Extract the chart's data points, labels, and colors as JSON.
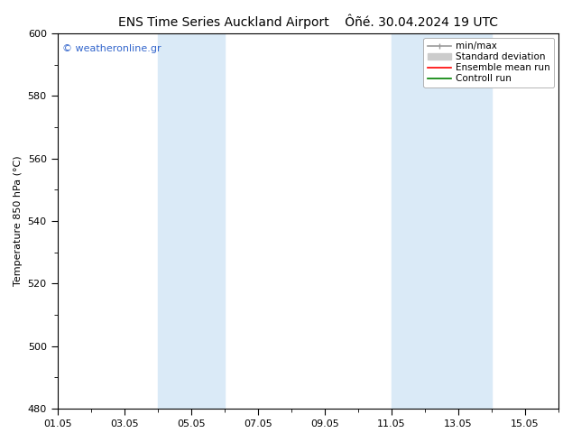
{
  "title_left": "ENS Time Series Auckland Airport",
  "title_right": "Ôñé. 30.04.2024 19 UTC",
  "ylabel": "Temperature 850 hPa (°C)",
  "watermark": "© weatheronline.gr",
  "ylim": [
    480,
    600
  ],
  "yticks": [
    480,
    500,
    520,
    540,
    560,
    580,
    600
  ],
  "xlim": [
    0,
    15
  ],
  "xtick_labels": [
    "01.05",
    "03.05",
    "05.05",
    "07.05",
    "09.05",
    "11.05",
    "13.05",
    "15.05"
  ],
  "xtick_positions_days": [
    0,
    2,
    4,
    6,
    8,
    10,
    12,
    14
  ],
  "shaded_bands": [
    {
      "x_start_day": 3.0,
      "x_end_day": 5.0
    },
    {
      "x_start_day": 10.0,
      "x_end_day": 13.0
    }
  ],
  "shade_color": "#daeaf7",
  "background_color": "#ffffff",
  "legend_entries": [
    {
      "label": "min/max",
      "color": "#999999",
      "lw": 1.2
    },
    {
      "label": "Standard deviation",
      "color": "#cccccc",
      "lw": 6
    },
    {
      "label": "Ensemble mean run",
      "color": "#ff0000",
      "lw": 1.2
    },
    {
      "label": "Controll run",
      "color": "#008000",
      "lw": 1.2
    }
  ],
  "watermark_color": "#3366cc",
  "title_fontsize": 10,
  "tick_label_fontsize": 8,
  "ylabel_fontsize": 8,
  "legend_fontsize": 7.5,
  "spine_color": "#000000"
}
